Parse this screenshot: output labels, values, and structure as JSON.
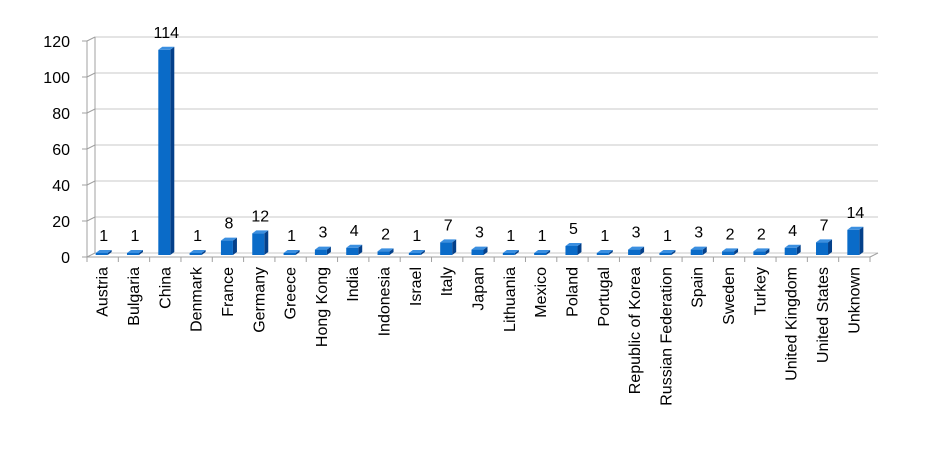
{
  "chart_data": {
    "type": "bar",
    "title": "",
    "xlabel": "",
    "ylabel": "",
    "categories": [
      "Austria",
      "Bulgaria",
      "China",
      "Denmark",
      "France",
      "Germany",
      "Greece",
      "Hong Kong",
      "India",
      "Indonesia",
      "Israel",
      "Italy",
      "Japan",
      "Lithuania",
      "Mexico",
      "Poland",
      "Portugal",
      "Republic of Korea",
      "Russian Federation",
      "Spain",
      "Sweden",
      "Turkey",
      "United Kingdom",
      "United States",
      "Unknown"
    ],
    "values": [
      1,
      1,
      114,
      1,
      8,
      12,
      1,
      3,
      4,
      2,
      1,
      7,
      3,
      1,
      1,
      5,
      1,
      3,
      1,
      3,
      2,
      2,
      4,
      7,
      14
    ],
    "ylim": [
      0,
      120
    ],
    "yticks": [
      0,
      20,
      40,
      60,
      80,
      100,
      120
    ],
    "grid": true,
    "legend": "none",
    "colors": {
      "bar_front": "#0a6bc8",
      "bar_side": "#04408a",
      "bar_top": "#3b8fe0",
      "grid": "#c8c8c8",
      "axis": "#a0a0a0"
    }
  }
}
